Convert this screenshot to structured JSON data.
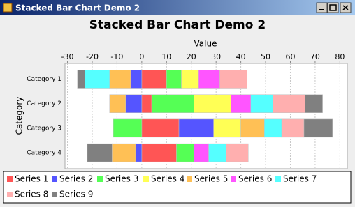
{
  "window": {
    "title": "Stacked Bar Chart Demo 2"
  },
  "chart_data": {
    "type": "stacked_bar",
    "orientation": "horizontal",
    "title": "Stacked Bar Chart Demo 2",
    "x_label": "Value",
    "y_label": "Category",
    "categories": [
      "Category 1",
      "Category 2",
      "Category 3",
      "Category 4"
    ],
    "series": [
      {
        "name": "Series 1",
        "color": "#ff5555",
        "values": [
          10,
          4,
          15,
          14
        ]
      },
      {
        "name": "Series 2",
        "color": "#5555ff",
        "values": [
          -4.5,
          -6.5,
          14,
          -2.5
        ]
      },
      {
        "name": "Series 3",
        "color": "#55ff55",
        "values": [
          6,
          17,
          -11.5,
          7
        ]
      },
      {
        "name": "Series 4",
        "color": "#ffff55",
        "values": [
          7,
          15,
          11,
          0
        ]
      },
      {
        "name": "Series 5",
        "color": "#ffc055",
        "values": [
          -8.5,
          -6.5,
          9.5,
          -9.5
        ]
      },
      {
        "name": "Series 6",
        "color": "#ff55ff",
        "values": [
          8.5,
          8,
          0,
          6
        ]
      },
      {
        "name": "Series 7",
        "color": "#55ffff",
        "values": [
          -10,
          9,
          7,
          7
        ]
      },
      {
        "name": "Series 8",
        "color": "#ffafaf",
        "values": [
          11,
          13,
          9,
          9
        ]
      },
      {
        "name": "Series 9",
        "color": "#808080",
        "values": [
          -3,
          7,
          11.5,
          -10
        ]
      }
    ],
    "xlim": [
      -31,
      83
    ],
    "xticks": [
      -30,
      -20,
      -10,
      0,
      10,
      20,
      30,
      40,
      50,
      60,
      70,
      80
    ],
    "grid": true,
    "legend": "bottom"
  }
}
